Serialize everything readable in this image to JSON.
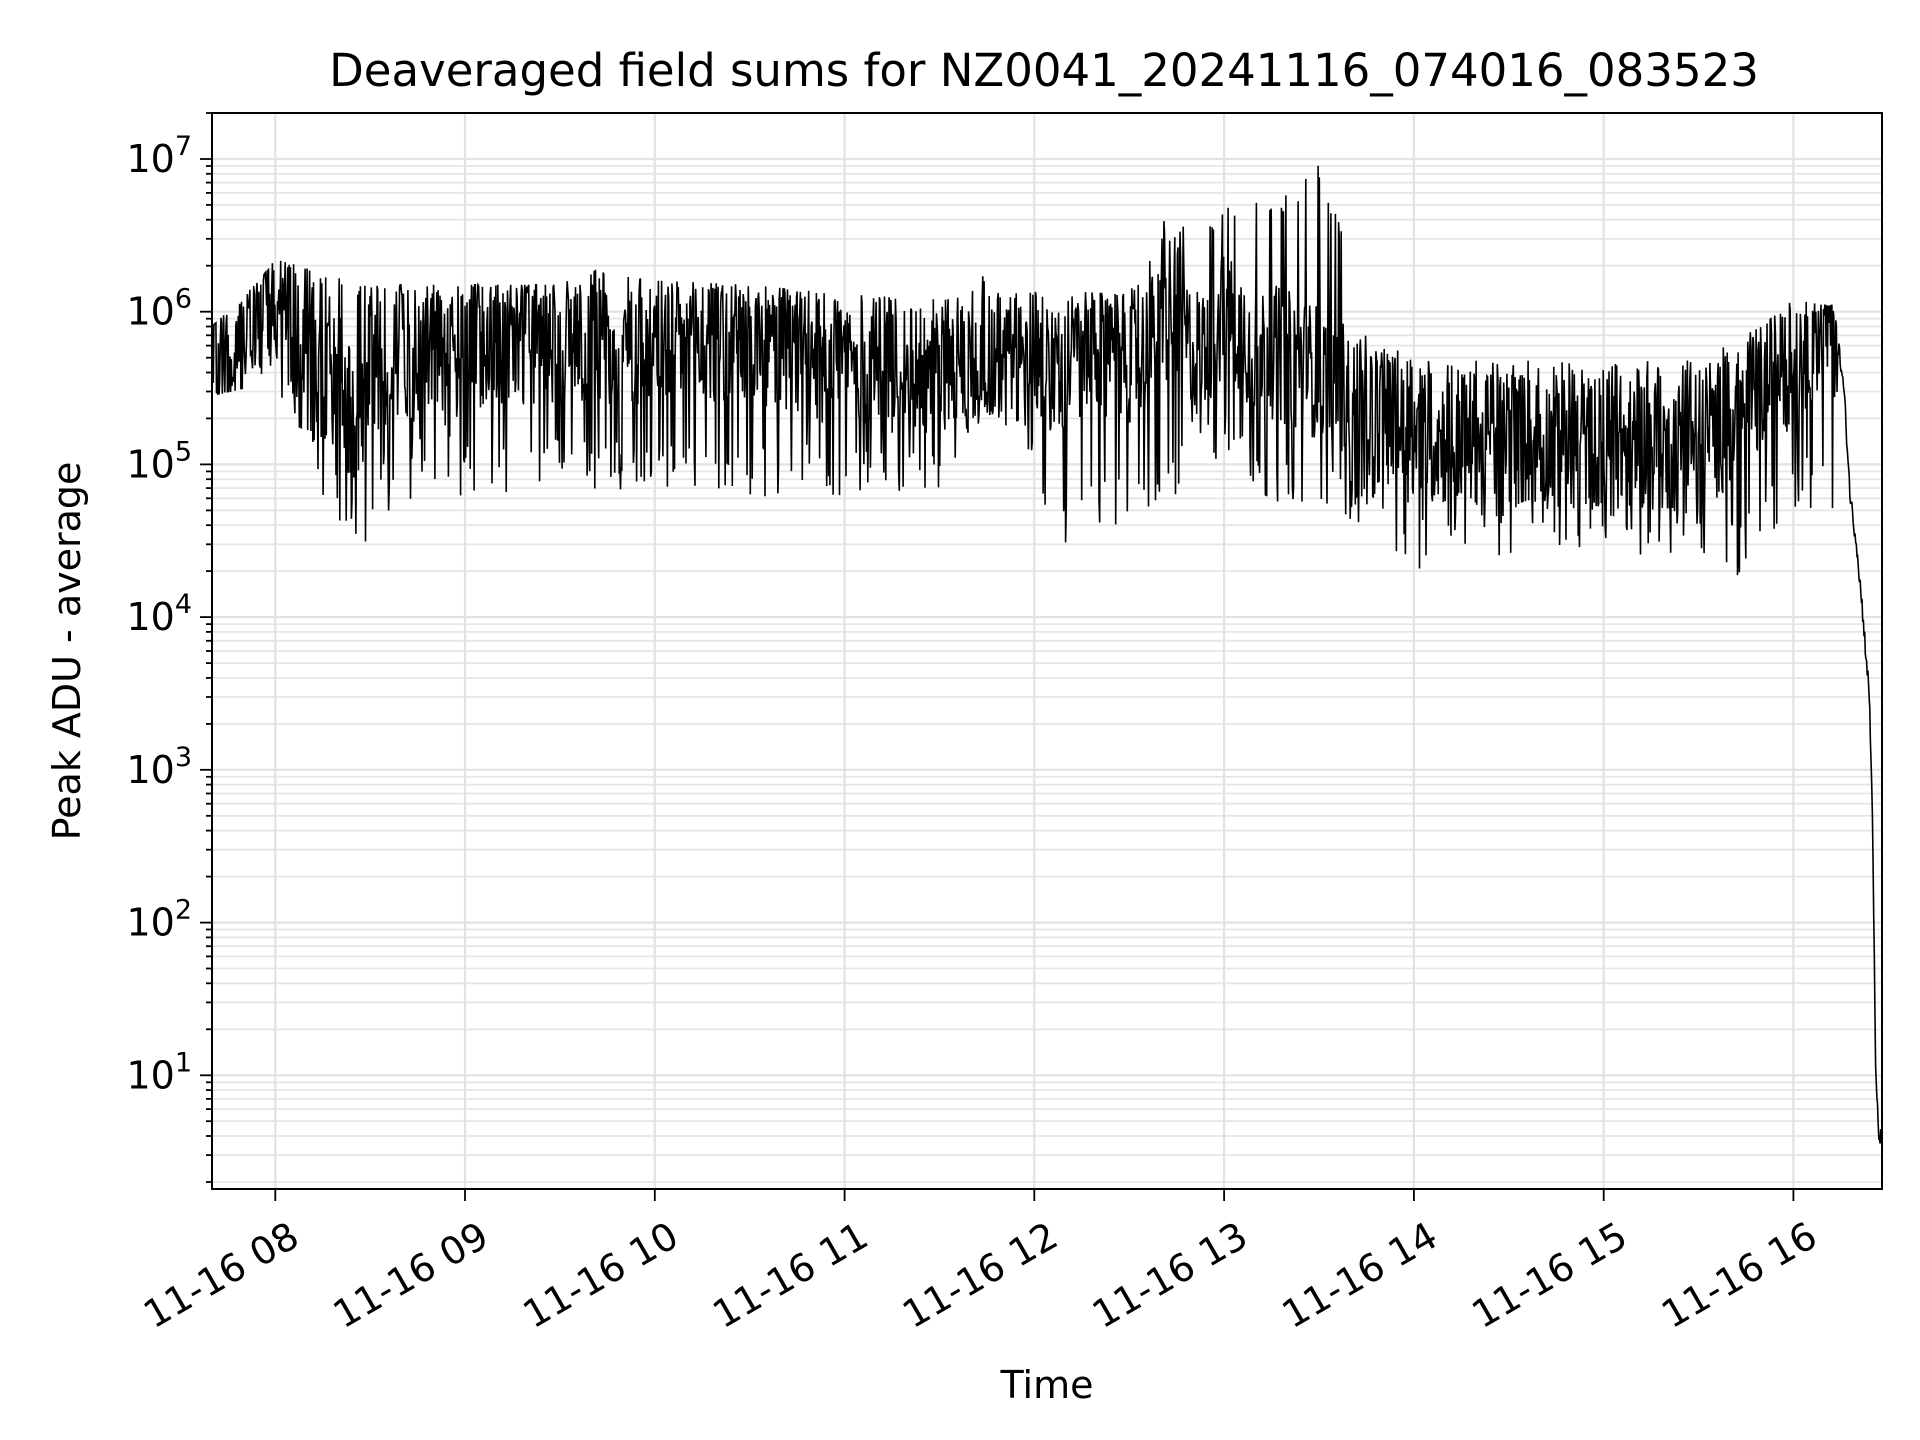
{
  "chart_data": {
    "type": "line",
    "title": "Deaveraged field sums for NZ0041_20241116_074016_083523",
    "xlabel": "Time",
    "ylabel": "Peak ADU - average",
    "yscale": "log",
    "ylim": [
      1.8,
      20000000
    ],
    "xlim": [
      "2024-11-16 07:40",
      "2024-11-16 16:28"
    ],
    "grid": true,
    "grid_which": "both",
    "line_color": "#000000",
    "x_ticks": [
      {
        "time": "2024-11-16 08:00",
        "label": "11-16 08"
      },
      {
        "time": "2024-11-16 09:00",
        "label": "11-16 09"
      },
      {
        "time": "2024-11-16 10:00",
        "label": "11-16 10"
      },
      {
        "time": "2024-11-16 11:00",
        "label": "11-16 11"
      },
      {
        "time": "2024-11-16 12:00",
        "label": "11-16 12"
      },
      {
        "time": "2024-11-16 13:00",
        "label": "11-16 13"
      },
      {
        "time": "2024-11-16 14:00",
        "label": "11-16 14"
      },
      {
        "time": "2024-11-16 15:00",
        "label": "11-16 15"
      },
      {
        "time": "2024-11-16 16:00",
        "label": "11-16 16"
      }
    ],
    "y_ticks": [
      {
        "value": 10,
        "base": "10",
        "exponent": "1"
      },
      {
        "value": 100,
        "base": "10",
        "exponent": "2"
      },
      {
        "value": 1000,
        "base": "10",
        "exponent": "3"
      },
      {
        "value": 10000,
        "base": "10",
        "exponent": "4"
      },
      {
        "value": 100000,
        "base": "10",
        "exponent": "5"
      },
      {
        "value": 1000000,
        "base": "10",
        "exponent": "6"
      },
      {
        "value": 10000000,
        "base": "10",
        "exponent": "7"
      }
    ],
    "series": [
      {
        "points": [
          [
            "2024-11-16 07:40",
            600000
          ],
          [
            "2024-11-16 07:42",
            420000
          ],
          [
            "2024-11-16 07:44",
            350000
          ],
          [
            "2024-11-16 07:46",
            380000
          ],
          [
            "2024-11-16 07:48",
            500000
          ],
          [
            "2024-11-16 07:50",
            600000
          ],
          [
            "2024-11-16 07:53",
            1000000
          ],
          [
            "2024-11-16 07:56",
            1500000
          ],
          [
            "2024-11-16 07:58",
            1300000
          ],
          [
            "2024-11-16 08:00",
            900000
          ],
          [
            "2024-11-16 08:02",
            1500000
          ],
          [
            "2024-11-16 08:05",
            1200000
          ],
          [
            "2024-11-16 08:08",
            500000
          ],
          [
            "2024-11-16 08:10",
            700000
          ],
          [
            "2024-11-16 08:15",
            300000
          ],
          [
            "2024-11-16 08:20",
            400000
          ],
          [
            "2024-11-16 08:25",
            150000
          ],
          [
            "2024-11-16 08:30",
            500000
          ],
          [
            "2024-11-16 08:35",
            250000
          ],
          [
            "2024-11-16 08:40",
            600000
          ],
          [
            "2024-11-16 08:45",
            300000
          ],
          [
            "2024-11-16 08:50",
            800000
          ],
          [
            "2024-11-16 08:55",
            400000
          ],
          [
            "2024-11-16 09:00",
            700000
          ],
          [
            "2024-11-16 09:10",
            600000
          ],
          [
            "2024-11-16 09:20",
            700000
          ],
          [
            "2024-11-16 09:30",
            650000
          ],
          [
            "2024-11-16 09:40",
            700000
          ],
          [
            "2024-11-16 09:50",
            650000
          ],
          [
            "2024-11-16 10:00",
            700000
          ],
          [
            "2024-11-16 10:15",
            650000
          ],
          [
            "2024-11-16 10:30",
            600000
          ],
          [
            "2024-11-16 10:45",
            550000
          ],
          [
            "2024-11-16 11:00",
            500000
          ],
          [
            "2024-11-16 11:15",
            450000
          ],
          [
            "2024-11-16 11:30",
            450000
          ],
          [
            "2024-11-16 11:45",
            500000
          ],
          [
            "2024-11-16 12:00",
            450000
          ],
          [
            "2024-11-16 12:15",
            500000
          ],
          [
            "2024-11-16 12:30",
            500000
          ],
          [
            "2024-11-16 12:40",
            700000
          ],
          [
            "2024-11-16 12:45",
            1000000
          ],
          [
            "2024-11-16 12:50",
            500000
          ],
          [
            "2024-11-16 13:00",
            1000000
          ],
          [
            "2024-11-16 13:10",
            600000
          ],
          [
            "2024-11-16 13:20",
            500000
          ],
          [
            "2024-11-16 13:30",
            400000
          ],
          [
            "2024-11-16 13:40",
            300000
          ],
          [
            "2024-11-16 13:50",
            200000
          ],
          [
            "2024-11-16 14:00",
            150000
          ],
          [
            "2024-11-16 14:15",
            150000
          ],
          [
            "2024-11-16 14:30",
            150000
          ],
          [
            "2024-11-16 14:45",
            140000
          ],
          [
            "2024-11-16 15:00",
            140000
          ],
          [
            "2024-11-16 15:15",
            140000
          ],
          [
            "2024-11-16 15:30",
            130000
          ],
          [
            "2024-11-16 15:45",
            250000
          ],
          [
            "2024-11-16 15:55",
            400000
          ],
          [
            "2024-11-16 16:00",
            500000
          ],
          [
            "2024-11-16 16:05",
            700000
          ],
          [
            "2024-11-16 16:10",
            850000
          ],
          [
            "2024-11-16 16:12",
            900000
          ],
          [
            "2024-11-16 16:14",
            650000
          ],
          [
            "2024-11-16 16:16",
            300000
          ],
          [
            "2024-11-16 16:18",
            60000
          ],
          [
            "2024-11-16 16:20",
            30000
          ],
          [
            "2024-11-16 16:22",
            10000
          ],
          [
            "2024-11-16 16:24",
            3000
          ],
          [
            "2024-11-16 16:25",
            500
          ],
          [
            "2024-11-16 16:26",
            10
          ],
          [
            "2024-11-16 16:27",
            4
          ],
          [
            "2024-11-16 16:28",
            3.8
          ]
        ],
        "envelope_high": [
          [
            "2024-11-16 07:40",
            800000
          ],
          [
            "2024-11-16 07:55",
            1600000
          ],
          [
            "2024-11-16 08:00",
            2200000
          ],
          [
            "2024-11-16 08:30",
            1500000
          ],
          [
            "2024-11-16 09:00",
            1500000
          ],
          [
            "2024-11-16 09:30",
            1500000
          ],
          [
            "2024-11-16 09:40",
            1900000
          ],
          [
            "2024-11-16 10:00",
            1600000
          ],
          [
            "2024-11-16 10:30",
            1500000
          ],
          [
            "2024-11-16 11:00",
            1300000
          ],
          [
            "2024-11-16 11:30",
            1200000
          ],
          [
            "2024-11-16 11:45",
            1800000
          ],
          [
            "2024-11-16 12:00",
            1400000
          ],
          [
            "2024-11-16 12:30",
            1300000
          ],
          [
            "2024-11-16 12:40",
            4000000
          ],
          [
            "2024-11-16 12:55",
            4000000
          ],
          [
            "2024-11-16 13:00",
            4500000
          ],
          [
            "2024-11-16 13:05",
            6800000
          ],
          [
            "2024-11-16 13:15",
            5000000
          ],
          [
            "2024-11-16 13:25",
            7000000
          ],
          [
            "2024-11-16 13:30",
            9800000
          ],
          [
            "2024-11-16 13:40",
            2500000
          ],
          [
            "2024-11-16 13:45",
            700000
          ],
          [
            "2024-11-16 14:00",
            500000
          ],
          [
            "2024-11-16 14:30",
            500000
          ],
          [
            "2024-11-16 15:00",
            500000
          ],
          [
            "2024-11-16 15:30",
            500000
          ],
          [
            "2024-11-16 15:50",
            800000
          ],
          [
            "2024-11-16 16:00",
            1200000
          ],
          [
            "2024-11-16 16:10",
            1100000
          ]
        ],
        "envelope_low": [
          [
            "2024-11-16 07:40",
            280000
          ],
          [
            "2024-11-16 08:00",
            350000
          ],
          [
            "2024-11-16 08:15",
            60000
          ],
          [
            "2024-11-16 08:25",
            26000
          ],
          [
            "2024-11-16 08:40",
            50000
          ],
          [
            "2024-11-16 09:00",
            60000
          ],
          [
            "2024-11-16 09:30",
            70000
          ],
          [
            "2024-11-16 10:00",
            65000
          ],
          [
            "2024-11-16 10:30",
            60000
          ],
          [
            "2024-11-16 11:00",
            60000
          ],
          [
            "2024-11-16 11:30",
            65000
          ],
          [
            "2024-11-16 11:45",
            220000
          ],
          [
            "2024-11-16 12:10",
            27000
          ],
          [
            "2024-11-16 12:30",
            45000
          ],
          [
            "2024-11-16 12:45",
            60000
          ],
          [
            "2024-11-16 13:00",
            100000
          ],
          [
            "2024-11-16 13:20",
            45000
          ],
          [
            "2024-11-16 13:35",
            40000
          ],
          [
            "2024-11-16 13:50",
            30000
          ],
          [
            "2024-11-16 14:00",
            20000
          ],
          [
            "2024-11-16 14:30",
            25000
          ],
          [
            "2024-11-16 15:00",
            25000
          ],
          [
            "2024-11-16 15:30",
            25000
          ],
          [
            "2024-11-16 15:42",
            18000
          ],
          [
            "2024-11-16 16:00",
            50000
          ]
        ]
      }
    ]
  }
}
